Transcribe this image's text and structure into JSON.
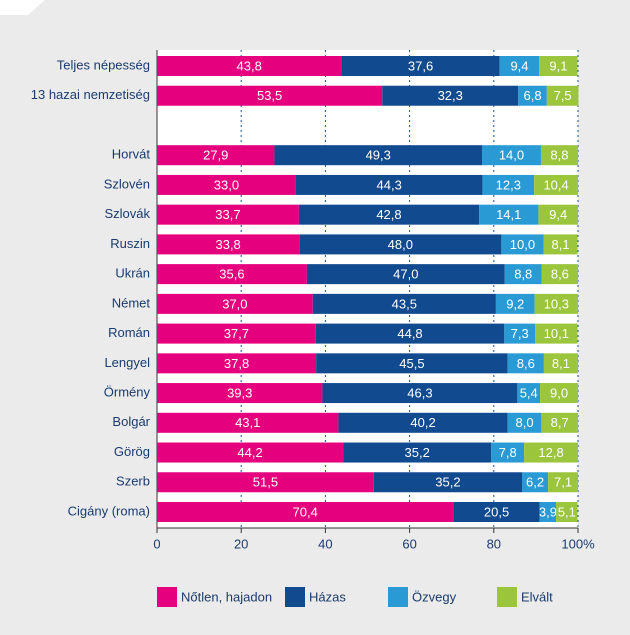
{
  "chart_data": {
    "type": "bar",
    "orientation": "horizontal",
    "stacked": true,
    "categories": [
      "Teljes népesség",
      "13 hazai nemzetiség",
      null,
      "Horvát",
      "Szlovén",
      "Szlovák",
      "Ruszin",
      "Ukrán",
      "Német",
      "Román",
      "Lengyel",
      "Örmény",
      "Bolgár",
      "Görög",
      "Szerb",
      "Cigány (roma)"
    ],
    "series": [
      {
        "name": "Nőtlen, hajadon",
        "color": "#e5007d",
        "values": [
          43.8,
          53.5,
          null,
          27.9,
          33.0,
          33.7,
          33.8,
          35.6,
          37.0,
          37.7,
          37.8,
          39.3,
          43.1,
          44.2,
          51.5,
          70.4
        ],
        "value_labels": [
          "43,8",
          "53,5",
          null,
          "27,9",
          "33,0",
          "33,7",
          "33,8",
          "35,6",
          "37,0",
          "37,7",
          "37,8",
          "39,3",
          "43,1",
          "44,2",
          "51,5",
          "70,4"
        ]
      },
      {
        "name": "Házas",
        "color": "#114a8e",
        "values": [
          37.6,
          32.3,
          null,
          49.3,
          44.3,
          42.8,
          48.0,
          47.0,
          43.5,
          44.8,
          45.5,
          46.3,
          40.2,
          35.2,
          35.2,
          20.5
        ],
        "value_labels": [
          "37,6",
          "32,3",
          null,
          "49,3",
          "44,3",
          "42,8",
          "48,0",
          "47,0",
          "43,5",
          "44,8",
          "45,5",
          "46,3",
          "40,2",
          "35,2",
          "35,2",
          "20,5"
        ]
      },
      {
        "name": "Özvegy",
        "color": "#2a9ad4",
        "values": [
          9.4,
          6.8,
          null,
          14.0,
          12.3,
          14.1,
          10.0,
          8.8,
          9.2,
          7.3,
          8.6,
          5.4,
          8.0,
          7.8,
          6.2,
          3.9
        ],
        "value_labels": [
          "9,4",
          "6,8",
          null,
          "14,0",
          "12,3",
          "14,1",
          "10,0",
          "8,8",
          "9,2",
          "7,3",
          "8,6",
          "5,4",
          "8,0",
          "7,8",
          "6,2",
          "3,9"
        ]
      },
      {
        "name": "Elvált",
        "color": "#9ac53c",
        "values": [
          9.1,
          7.5,
          null,
          8.8,
          10.4,
          9.4,
          8.1,
          8.6,
          10.3,
          10.1,
          8.1,
          9.0,
          8.7,
          12.8,
          7.1,
          5.1
        ],
        "value_labels": [
          "9,1",
          "7,5",
          null,
          "8,8",
          "10,4",
          "9,4",
          "8,1",
          "8,6",
          "10,3",
          "10,1",
          "8,1",
          "9,0",
          "8,7",
          "12,8",
          "7,1",
          "5,1"
        ]
      }
    ],
    "xlim": [
      0,
      100
    ],
    "xticks": [
      0,
      20,
      40,
      60,
      80,
      {
        "value": 100,
        "label": "100%"
      }
    ],
    "grid": true
  }
}
